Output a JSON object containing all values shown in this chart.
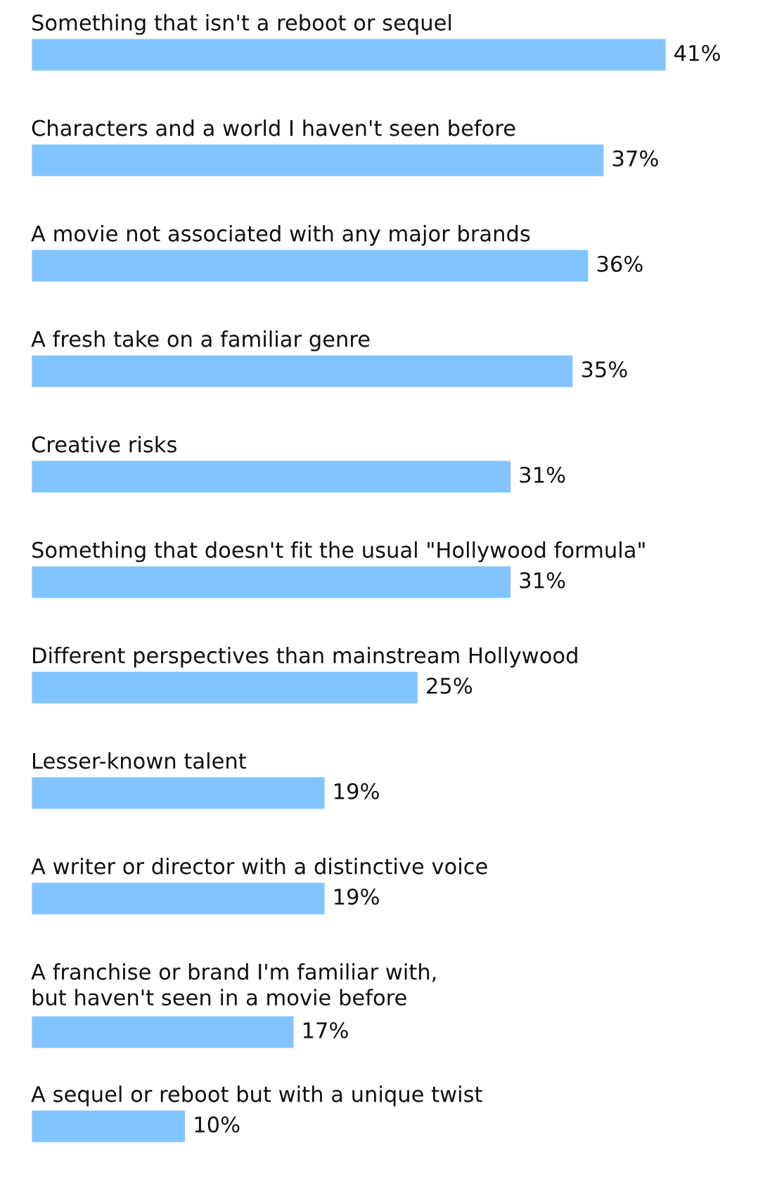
{
  "chart_data": {
    "type": "bar",
    "orientation": "horizontal",
    "data_labels": true,
    "color": "#82c4ff",
    "categories": [
      "Something that isn't a reboot or sequel",
      "Characters and a world I haven't seen before",
      "A movie not associated with any major brands",
      "A fresh take on a familiar genre",
      "Creative risks",
      "Something that doesn't fit the usual \"Hollywood formula\"",
      "Different perspectives than mainstream Hollywood",
      "Lesser-known talent",
      "A writer or director with a distinctive voice",
      "A franchise or brand I'm familiar with,\nbut haven't seen in a movie before",
      "A sequel or reboot but with a unique twist"
    ],
    "values": [
      41,
      37,
      36,
      35,
      31,
      31,
      25,
      19,
      19,
      17,
      10
    ],
    "value_labels": [
      "41%",
      "37%",
      "36%",
      "35%",
      "31%",
      "31%",
      "25%",
      "19%",
      "19%",
      "17%",
      "10%"
    ]
  }
}
